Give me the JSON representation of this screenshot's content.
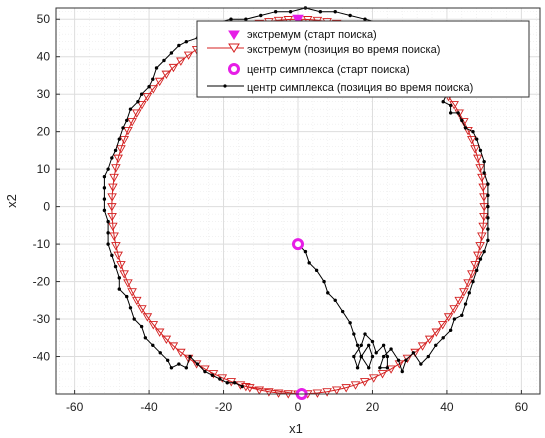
{
  "chart_data": {
    "type": "line",
    "title": "",
    "xlabel": "x1",
    "ylabel": "x2",
    "xlim": [
      -65,
      65
    ],
    "ylim": [
      -50,
      53
    ],
    "xticks": [
      -60,
      -40,
      -20,
      0,
      20,
      40,
      60
    ],
    "yticks": [
      -40,
      -30,
      -20,
      -10,
      0,
      10,
      20,
      30,
      40,
      50
    ],
    "grid": true,
    "minor_grid": true,
    "legend_position": "top-right",
    "colors": {
      "extremum_start": "#e61ee6",
      "extremum_path": "#d42020",
      "centroid_start": "#e61ee6",
      "centroid_path": "#000000",
      "grid": "#dddddd",
      "axes": "#333333"
    },
    "series": [
      {
        "name": "экстремум (старт поиска)",
        "marker": "filled-triangle-down",
        "points": [
          [
            0,
            50
          ]
        ]
      },
      {
        "name": "экстремум (позиция во время поиска)",
        "marker": "open-triangle-down",
        "circle": {
          "cx": 0,
          "cy": 0,
          "r": 50,
          "from_deg": 90,
          "to_deg": 270,
          "direction": "counterclockwise",
          "end_point": [
            -14,
            -48
          ]
        },
        "circle_2": {
          "cx": 0,
          "cy": 0,
          "r": 50,
          "from_deg": -90,
          "to_deg": 90,
          "direction": "counterclockwise",
          "start_point": [
            1,
            -50
          ],
          "end_point": [
            30,
            40
          ]
        }
      },
      {
        "name": "центр симплекса (старт поиска)",
        "marker": "filled-circle",
        "points": [
          [
            0,
            -10
          ]
        ]
      },
      {
        "name": "центр симплекса (позиция во время поиска)",
        "marker": "dot",
        "points": [
          [
            0,
            -10
          ],
          [
            2,
            -12
          ],
          [
            3,
            -15
          ],
          [
            5,
            -17
          ],
          [
            7,
            -20
          ],
          [
            8,
            -23
          ],
          [
            10,
            -25
          ],
          [
            12,
            -28
          ],
          [
            14,
            -31
          ],
          [
            15,
            -34
          ],
          [
            16,
            -37
          ],
          [
            17,
            -40
          ],
          [
            19,
            -37
          ],
          [
            20,
            -40
          ],
          [
            19,
            -43
          ],
          [
            17,
            -40
          ],
          [
            16,
            -43
          ],
          [
            15,
            -40
          ],
          [
            17,
            -37
          ],
          [
            18,
            -34
          ],
          [
            20,
            -36
          ],
          [
            21,
            -39
          ],
          [
            23,
            -37
          ],
          [
            24,
            -40
          ],
          [
            24,
            -43
          ],
          [
            22,
            -43
          ],
          [
            23,
            -40
          ],
          [
            25,
            -38
          ],
          [
            27,
            -41
          ],
          [
            28,
            -44
          ],
          [
            29,
            -41
          ],
          [
            31,
            -39
          ],
          [
            33,
            -42
          ],
          [
            35,
            -40
          ],
          [
            37,
            -37
          ],
          [
            39,
            -35
          ],
          [
            41,
            -33
          ],
          [
            42,
            -30
          ],
          [
            44,
            -29
          ],
          [
            45,
            -26
          ],
          [
            46,
            -23
          ],
          [
            47,
            -20
          ],
          [
            48,
            -17
          ],
          [
            49,
            -14
          ],
          [
            50,
            -12
          ],
          [
            51,
            -9
          ],
          [
            51,
            -6
          ],
          [
            51,
            -3
          ],
          [
            51,
            0
          ],
          [
            51,
            3
          ],
          [
            51,
            6
          ],
          [
            50,
            9
          ],
          [
            50,
            12
          ],
          [
            49,
            15
          ],
          [
            48,
            18
          ],
          [
            47,
            20
          ],
          [
            45,
            21
          ],
          [
            44,
            23
          ],
          [
            43,
            25
          ],
          [
            41,
            25
          ],
          [
            41,
            27
          ],
          [
            39,
            28
          ],
          [
            40,
            30
          ],
          [
            38,
            32
          ],
          [
            37,
            34
          ],
          [
            36,
            37
          ],
          [
            35,
            39
          ],
          [
            34,
            41
          ],
          [
            32,
            42
          ],
          [
            31,
            44
          ],
          [
            29,
            45
          ],
          [
            26,
            46
          ],
          [
            24,
            48
          ],
          [
            22,
            49
          ],
          [
            18,
            50
          ],
          [
            14,
            51
          ],
          [
            10,
            52
          ],
          [
            6,
            52
          ],
          [
            2,
            53
          ],
          [
            -2,
            52
          ],
          [
            -6,
            52
          ],
          [
            -10,
            51
          ],
          [
            -14,
            50
          ],
          [
            -18,
            50
          ],
          [
            -22,
            49
          ],
          [
            -25,
            47
          ],
          [
            -27,
            45
          ],
          [
            -30,
            44
          ],
          [
            -32,
            43
          ],
          [
            -34,
            41
          ],
          [
            -36,
            39
          ],
          [
            -38,
            37
          ],
          [
            -39,
            34
          ],
          [
            -40,
            32
          ],
          [
            -42,
            30
          ],
          [
            -43,
            28
          ],
          [
            -45,
            26
          ],
          [
            -46,
            23
          ],
          [
            -47,
            21
          ],
          [
            -48,
            18
          ],
          [
            -49,
            15
          ],
          [
            -50,
            13
          ],
          [
            -51,
            10
          ],
          [
            -52,
            8
          ],
          [
            -52,
            5
          ],
          [
            -52,
            2
          ],
          [
            -52,
            -1
          ],
          [
            -51,
            -4
          ],
          [
            -51,
            -7
          ],
          [
            -51,
            -10
          ],
          [
            -50,
            -13
          ],
          [
            -49,
            -16
          ],
          [
            -48,
            -19
          ],
          [
            -48,
            -22
          ],
          [
            -46,
            -24
          ],
          [
            -45,
            -27
          ],
          [
            -44,
            -30
          ],
          [
            -42,
            -32
          ],
          [
            -41,
            -35
          ],
          [
            -39,
            -37
          ],
          [
            -37,
            -39
          ],
          [
            -35,
            -41
          ],
          [
            -34,
            -43
          ],
          [
            -32,
            -42
          ],
          [
            -30,
            -43
          ],
          [
            -29,
            -40
          ],
          [
            -27,
            -42
          ],
          [
            -25,
            -44
          ],
          [
            -23,
            -45
          ],
          [
            -21,
            -46
          ],
          [
            -19,
            -47
          ],
          [
            -17,
            -47
          ],
          [
            -15,
            -48
          ]
        ]
      }
    ]
  }
}
